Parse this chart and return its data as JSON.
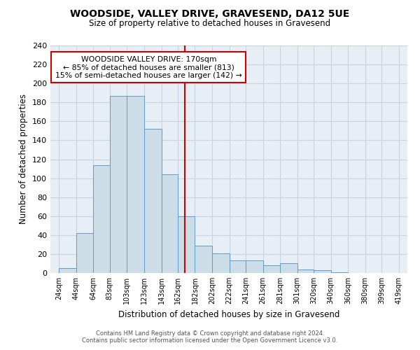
{
  "title": "WOODSIDE, VALLEY DRIVE, GRAVESEND, DA12 5UE",
  "subtitle": "Size of property relative to detached houses in Gravesend",
  "xlabel": "Distribution of detached houses by size in Gravesend",
  "ylabel": "Number of detached properties",
  "bar_left_edges": [
    24,
    44,
    64,
    83,
    103,
    123,
    143,
    162,
    182,
    202,
    222,
    241,
    261,
    281,
    301,
    320,
    340,
    360,
    380,
    399
  ],
  "bar_widths": [
    20,
    20,
    19,
    20,
    20,
    20,
    19,
    20,
    20,
    20,
    19,
    20,
    20,
    20,
    19,
    20,
    20,
    20,
    19,
    20
  ],
  "bar_heights": [
    5,
    42,
    114,
    187,
    187,
    152,
    104,
    60,
    29,
    21,
    13,
    13,
    8,
    10,
    4,
    3,
    1,
    0,
    0,
    0
  ],
  "tick_labels": [
    "24sqm",
    "44sqm",
    "64sqm",
    "83sqm",
    "103sqm",
    "123sqm",
    "143sqm",
    "162sqm",
    "182sqm",
    "202sqm",
    "222sqm",
    "241sqm",
    "261sqm",
    "281sqm",
    "301sqm",
    "320sqm",
    "340sqm",
    "360sqm",
    "380sqm",
    "399sqm",
    "419sqm"
  ],
  "tick_positions": [
    24,
    44,
    64,
    83,
    103,
    123,
    143,
    162,
    182,
    202,
    222,
    241,
    261,
    281,
    301,
    320,
    340,
    360,
    380,
    399,
    419
  ],
  "yticks": [
    0,
    20,
    40,
    60,
    80,
    100,
    120,
    140,
    160,
    180,
    200,
    220,
    240
  ],
  "ylim": [
    0,
    240
  ],
  "xlim": [
    14,
    429
  ],
  "bar_facecolor": "#ccdde8",
  "bar_edgecolor": "#5b9bd5",
  "grid_color": "#c8d4e0",
  "background_color": "#e8eef5",
  "vline_x": 170,
  "vline_color": "#cc0000",
  "annotation_title": "WOODSIDE VALLEY DRIVE: 170sqm",
  "annotation_line1": "← 85% of detached houses are smaller (813)",
  "annotation_line2": "15% of semi-detached houses are larger (142) →",
  "annotation_box_edgecolor": "#cc0000",
  "footer_line1": "Contains HM Land Registry data © Crown copyright and database right 2024.",
  "footer_line2": "Contains public sector information licensed under the Open Government Licence v3.0."
}
